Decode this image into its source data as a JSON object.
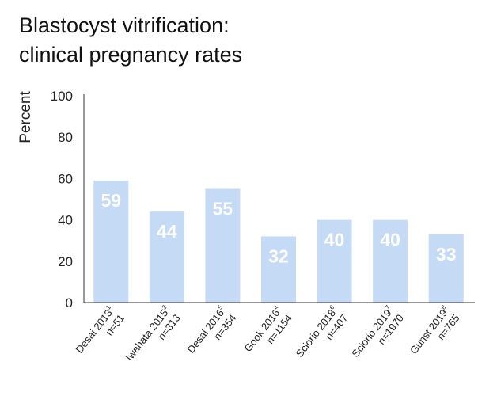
{
  "chart_data": {
    "type": "bar",
    "title_lines": [
      "Blastocyst vitrification:",
      "clinical pregnancy rates"
    ],
    "ylabel": "Percent",
    "xlabel": "",
    "ylim": [
      0,
      100
    ],
    "yticks": [
      0,
      20,
      40,
      60,
      80,
      100
    ],
    "grid": false,
    "legend": "none",
    "bar_color": "#c5daf5",
    "label_color": "#ffffff",
    "categories": [
      {
        "name": "Desai 2013",
        "ref": "1",
        "n": "n=51"
      },
      {
        "name": "Iwahata 2015",
        "ref": "3",
        "n": "n=313"
      },
      {
        "name": "Desai 2016",
        "ref": "5",
        "n": "n=354"
      },
      {
        "name": "Gook 2016",
        "ref": "4",
        "n": "n=1154"
      },
      {
        "name": "Sciorio 2018",
        "ref": "6",
        "n": "n=407"
      },
      {
        "name": "Sciorio 2019",
        "ref": "7",
        "n": "n=1970"
      },
      {
        "name": "Gunst 2019",
        "ref": "8",
        "n": "n=765"
      }
    ],
    "values": [
      59,
      44,
      55,
      32,
      40,
      40,
      33
    ]
  }
}
